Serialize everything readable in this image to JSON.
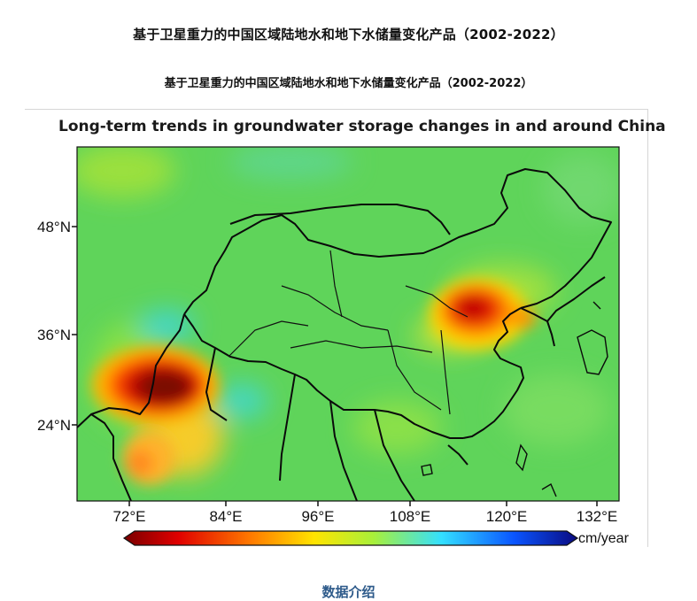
{
  "page": {
    "title": "基于卫星重力的中国区域陆地水和地下水储量变化产品（2002-2022）",
    "figure_caption": "基于卫星重力的中国区域陆地水和地下水储量变化产品（2002-2022）",
    "data_intro_link": "数据介绍"
  },
  "map": {
    "title": "Long-term trends in groundwater storage changes in and around China",
    "lat_labels": [
      "48°N",
      "36°N",
      "24°N"
    ],
    "lon_labels": [
      "72°E",
      "84°E",
      "96°E",
      "108°E",
      "120°E",
      "132°E"
    ],
    "colorbar_unit": "cm/year",
    "colorbar_colors": [
      "#7a0000",
      "#e00000",
      "#ff7a00",
      "#ffe400",
      "#a8f03a",
      "#33e0ff",
      "#0a55ff",
      "#0a0a80"
    ],
    "background_color": "#5fd45a",
    "hotspots": [
      {
        "name": "North China Plain",
        "trend": "strong decline"
      },
      {
        "name": "Northern India / Punjab",
        "trend": "strong decline"
      }
    ]
  }
}
